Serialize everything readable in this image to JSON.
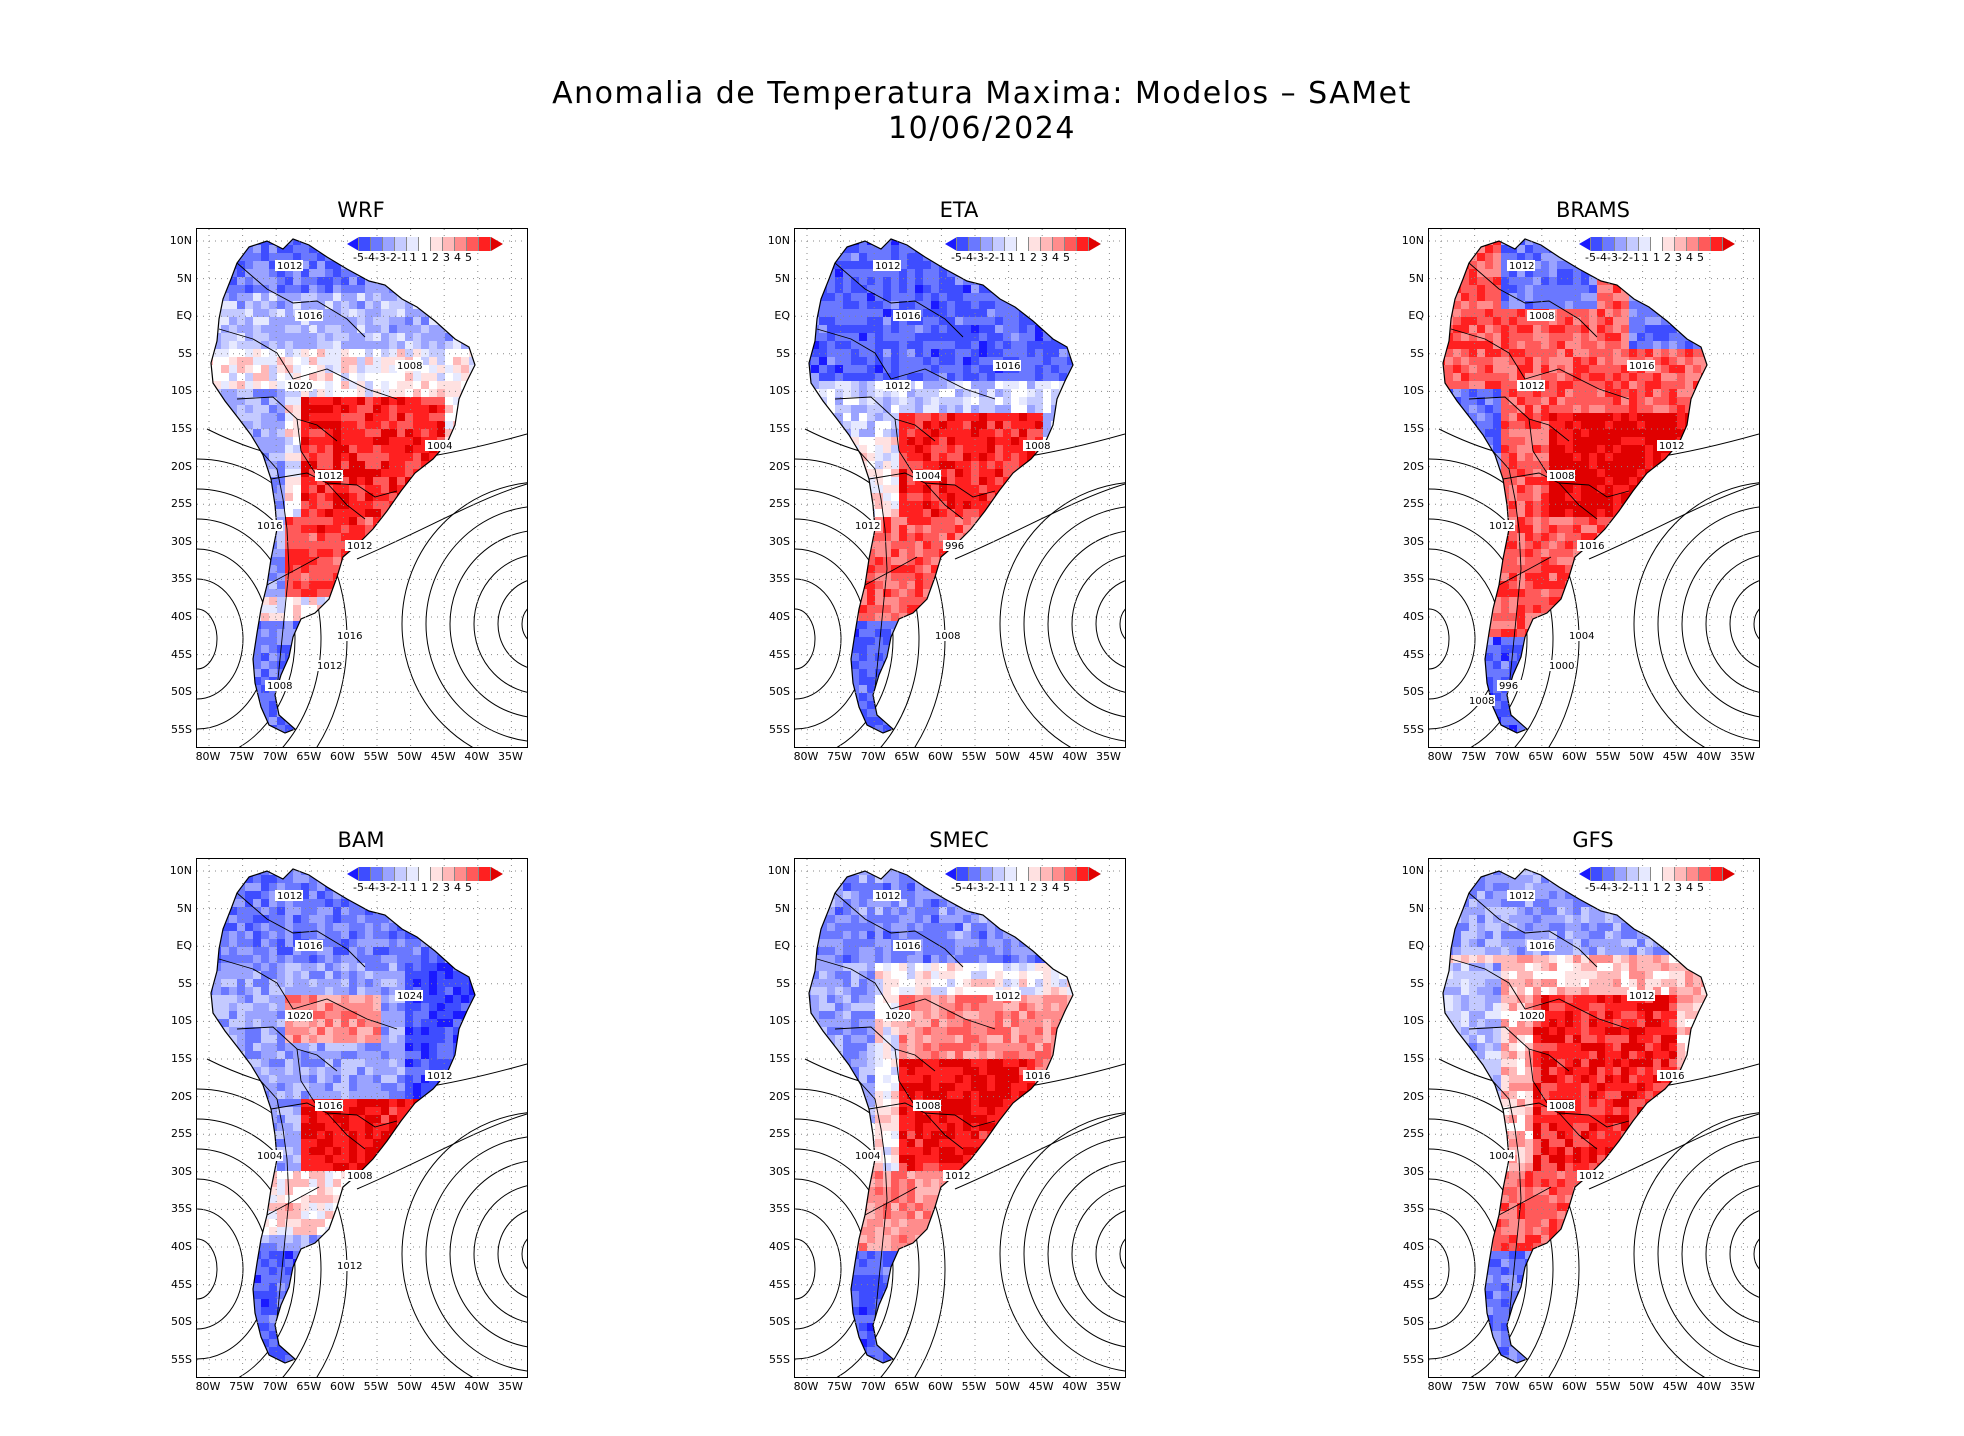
{
  "title_line1": "Anomalia de Temperatura Maxima: Modelos – SAMet",
  "title_line2": "10/06/2024",
  "lat_labels": [
    "10N",
    "5N",
    "EQ",
    "5S",
    "10S",
    "15S",
    "20S",
    "25S",
    "30S",
    "35S",
    "40S",
    "45S",
    "50S",
    "55S"
  ],
  "lon_labels": [
    "80W",
    "75W",
    "70W",
    "65W",
    "60W",
    "55W",
    "50W",
    "45W",
    "40W",
    "35W"
  ],
  "colorbar": {
    "labels": [
      "-5",
      "-4",
      "-3",
      "-2",
      "-1",
      "1",
      "1",
      "2",
      "3",
      "4",
      "5"
    ],
    "colors": [
      "#1a1aff",
      "#3e4dff",
      "#6a78ff",
      "#9aa3ff",
      "#c4caff",
      "#e6e9ff",
      "#ffffff",
      "#ffe1e1",
      "#ffb8b8",
      "#ff8c8c",
      "#ff5a5a",
      "#ff2020",
      "#e00000"
    ]
  },
  "panels": [
    {
      "name": "WRF",
      "pattern": "wrf",
      "isobars": [
        "1012",
        "1016",
        "1020",
        "1008",
        "1004",
        "1012",
        "1016",
        "1012",
        "1016",
        "1008",
        "1012"
      ]
    },
    {
      "name": "ETA",
      "pattern": "eta",
      "isobars": [
        "1012",
        "1016",
        "1012",
        "1016",
        "1008",
        "1004",
        "1012",
        "996",
        "1008"
      ]
    },
    {
      "name": "BRAMS",
      "pattern": "brams",
      "isobars": [
        "1012",
        "1008",
        "1012",
        "1016",
        "1012",
        "1008",
        "1012",
        "1016",
        "1004",
        "996",
        "1000",
        "1008"
      ]
    },
    {
      "name": "BAM",
      "pattern": "bam",
      "isobars": [
        "1012",
        "1016",
        "1020",
        "1024",
        "1012",
        "1016",
        "1004",
        "1008",
        "1012"
      ]
    },
    {
      "name": "SMEC",
      "pattern": "smec",
      "isobars": [
        "1012",
        "1016",
        "1020",
        "1012",
        "1016",
        "1008",
        "1004",
        "1012"
      ]
    },
    {
      "name": "GFS",
      "pattern": "gfs",
      "isobars": [
        "1012",
        "1016",
        "1020",
        "1012",
        "1016",
        "1008",
        "1004",
        "1012"
      ]
    }
  ]
}
